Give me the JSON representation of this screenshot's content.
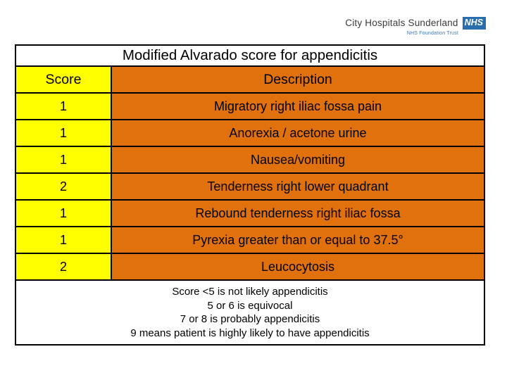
{
  "header": {
    "org_name": "City Hospitals Sunderland",
    "logo_text": "NHS",
    "trust_line": "NHS Foundation Trust"
  },
  "table": {
    "title": "Modified Alvarado score for appendicitis",
    "columns": {
      "score": "Score",
      "description": "Description"
    },
    "rows": [
      {
        "score": "1",
        "description": "Migratory right iliac fossa pain"
      },
      {
        "score": "1",
        "description": "Anorexia / acetone urine"
      },
      {
        "score": "1",
        "description": "Nausea/vomiting"
      },
      {
        "score": "2",
        "description": "Tenderness right lower quadrant"
      },
      {
        "score": "1",
        "description": "Rebound tenderness right iliac fossa"
      },
      {
        "score": "1",
        "description": "Pyrexia greater than or equal to 37.5°"
      },
      {
        "score": "2",
        "description": "Leucocytosis"
      }
    ]
  },
  "footer": {
    "lines": [
      "Score <5 is not likely appendicitis",
      "5 or 6 is equivocal",
      "7 or 8 is probably appendicitis",
      "9 means patient is highly likely to have appendicitis"
    ]
  },
  "colors": {
    "score_column": "#FFFF00",
    "description_column": "#E1710D",
    "nhs_blue": "#2A6EAD",
    "border": "#000000"
  }
}
